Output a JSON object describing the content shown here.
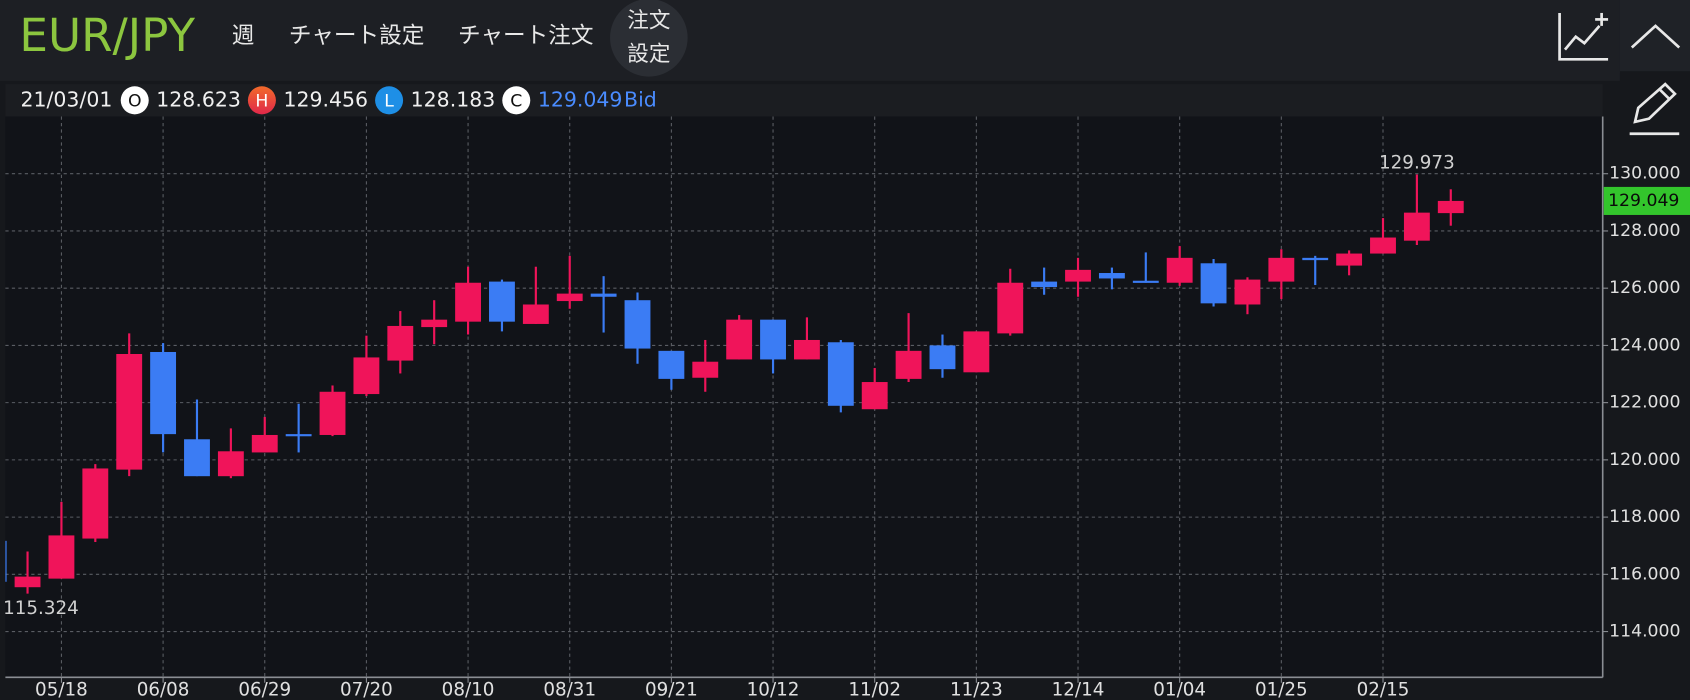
{
  "header": {
    "symbol": "EUR/JPY",
    "period": "週",
    "chart_settings": "チャート設定",
    "chart_order": "チャート注文",
    "order_settings": [
      "注文",
      "設定"
    ]
  },
  "chart_data": {
    "type": "candlestick",
    "info_date": "21/03/01",
    "ohlc_letters": [
      "O",
      "H",
      "L",
      "C"
    ],
    "price_side": "Bid",
    "categories": [
      null,
      null,
      "05/18",
      null,
      null,
      "06/08",
      null,
      null,
      "06/29",
      null,
      null,
      "07/20",
      null,
      null,
      "08/10",
      null,
      null,
      "08/31",
      null,
      null,
      "09/21",
      null,
      null,
      "10/12",
      null,
      null,
      "11/02",
      null,
      null,
      "11/23",
      null,
      null,
      "12/14",
      null,
      null,
      "01/04",
      null,
      null,
      "01/25",
      null,
      null,
      "02/15",
      null,
      null
    ],
    "open": [
      117.17,
      115.55,
      115.85,
      117.25,
      119.66,
      123.77,
      120.72,
      119.43,
      120.26,
      120.9,
      120.87,
      122.3,
      123.47,
      124.64,
      124.83,
      126.23,
      124.75,
      125.55,
      125.81,
      125.58,
      123.81,
      122.87,
      123.51,
      124.9,
      123.51,
      124.11,
      121.77,
      122.83,
      124.0,
      123.06,
      124.42,
      126.23,
      126.23,
      126.53,
      126.26,
      126.19,
      126.87,
      125.43,
      126.23,
      127.06,
      126.79,
      127.21,
      127.66,
      128.623
    ],
    "high": [
      117.2,
      116.8,
      118.53,
      119.85,
      124.42,
      124.08,
      122.11,
      121.1,
      121.5,
      121.96,
      122.6,
      124.34,
      125.2,
      125.58,
      126.75,
      126.3,
      126.75,
      127.13,
      126.42,
      125.85,
      123.81,
      124.19,
      125.06,
      124.9,
      124.98,
      124.19,
      123.21,
      125.13,
      124.38,
      124.49,
      126.68,
      126.72,
      127.06,
      126.72,
      127.25,
      127.47,
      127.02,
      126.38,
      127.36,
      127.13,
      127.32,
      128.45,
      129.973,
      129.456
    ],
    "low": [
      115.7,
      115.324,
      115.85,
      117.13,
      119.43,
      120.26,
      119.43,
      119.36,
      120.26,
      120.26,
      120.83,
      122.23,
      123.02,
      124.04,
      124.38,
      124.49,
      124.75,
      125.28,
      124.45,
      123.36,
      122.45,
      122.38,
      123.51,
      123.02,
      123.51,
      121.66,
      121.77,
      122.72,
      122.87,
      123.06,
      124.34,
      125.77,
      125.7,
      125.96,
      126.19,
      126.08,
      125.36,
      125.09,
      125.62,
      126.11,
      126.45,
      127.21,
      127.51,
      128.183
    ],
    "close": [
      115.74,
      115.92,
      117.36,
      119.7,
      123.7,
      120.9,
      119.43,
      120.3,
      120.87,
      120.85,
      122.38,
      123.58,
      124.68,
      124.9,
      126.19,
      124.83,
      125.43,
      125.81,
      125.7,
      123.89,
      122.83,
      123.43,
      124.9,
      123.51,
      124.19,
      121.89,
      122.72,
      123.81,
      123.17,
      124.49,
      126.19,
      126.04,
      126.64,
      126.34,
      126.23,
      127.06,
      125.47,
      126.3,
      127.06,
      126.98,
      127.21,
      127.77,
      128.64,
      129.049
    ],
    "up_color": "#f0145a",
    "down_color": "#3b7cf4",
    "tag_color": "#33c52c",
    "ylim": [
      112.4,
      132.0
    ],
    "yticks": [
      {
        "value": 114,
        "label": "114.000"
      },
      {
        "value": 116,
        "label": "116.000"
      },
      {
        "value": 118,
        "label": "118.000"
      },
      {
        "value": 120,
        "label": "120.000"
      },
      {
        "value": 122,
        "label": "122.000"
      },
      {
        "value": 124,
        "label": "124.000"
      },
      {
        "value": 126,
        "label": "126.000"
      },
      {
        "value": 128,
        "label": "128.000"
      },
      {
        "value": 130,
        "label": "130.000"
      }
    ],
    "grid": true
  }
}
